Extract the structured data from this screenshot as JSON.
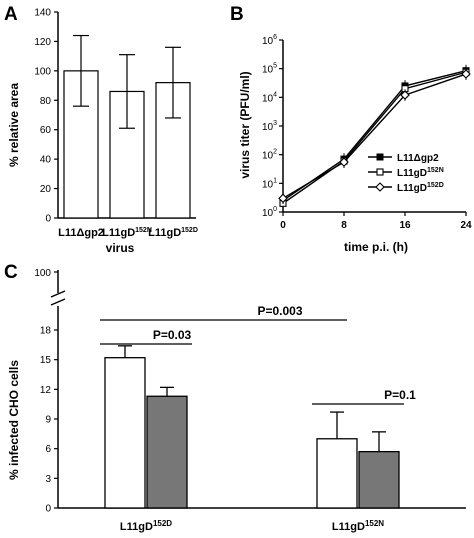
{
  "colors": {
    "axis": "#000000",
    "open_bar": "#ffffff",
    "filled_bar": "#777777",
    "line": "#000000"
  },
  "panels": {
    "A": {
      "letter": "A"
    },
    "B": {
      "letter": "B"
    },
    "C": {
      "letter": "C"
    }
  },
  "chart_data": [
    {
      "panel": "A",
      "type": "bar",
      "categories": [
        {
          "base": "L11Δgp2",
          "sup": ""
        },
        {
          "base": "L11gD",
          "sup": "152N"
        },
        {
          "base": "L11gD",
          "sup": "152D"
        }
      ],
      "values": [
        100,
        86,
        92
      ],
      "errors": [
        24,
        25,
        24
      ],
      "ylabel": "% relative area",
      "xlabel": "virus",
      "ylim": [
        0,
        140
      ],
      "yticks": [
        "0",
        "20",
        "40",
        "60",
        "80",
        "100",
        "120",
        "140"
      ],
      "grid": false
    },
    {
      "panel": "B",
      "type": "line",
      "x": [
        0,
        8,
        16,
        24
      ],
      "xticks": [
        "0",
        "8",
        "16",
        "24"
      ],
      "xlabel": "time p.i. (h)",
      "ylabel": "virus titer (PFU/ml)",
      "yscale": "log",
      "ylim": [
        1,
        1000000
      ],
      "yticks": [
        {
          "base": "10",
          "exp": "0"
        },
        {
          "base": "10",
          "exp": "1"
        },
        {
          "base": "10",
          "exp": "2"
        },
        {
          "base": "10",
          "exp": "3"
        },
        {
          "base": "10",
          "exp": "4"
        },
        {
          "base": "10",
          "exp": "5"
        },
        {
          "base": "10",
          "exp": "6"
        }
      ],
      "series": [
        {
          "name": {
            "base": "L11Δgp2",
            "sup": ""
          },
          "marker": "filled-square",
          "values": [
            2.5,
            70,
            25000,
            85000
          ]
        },
        {
          "name": {
            "base": "L11gD",
            "sup": "152N"
          },
          "marker": "open-square",
          "values": [
            2.0,
            60,
            20000,
            75000
          ]
        },
        {
          "name": {
            "base": "L11gD",
            "sup": "152D"
          },
          "marker": "open-diamond",
          "values": [
            3.0,
            55,
            12000,
            65000
          ]
        }
      ],
      "legend": "bottom-right",
      "grid": false
    },
    {
      "panel": "C",
      "type": "bar",
      "categories": [
        {
          "base": "L11gD",
          "sup": "152D"
        },
        {
          "base": "L11gD",
          "sup": "152N"
        }
      ],
      "series": [
        {
          "fill": "open",
          "values": [
            15.2,
            7.0
          ],
          "errors": [
            1.2,
            2.7
          ]
        },
        {
          "fill": "filled",
          "values": [
            11.3,
            5.7
          ],
          "errors": [
            0.9,
            2.0
          ]
        }
      ],
      "ylabel": "% infected CHO cells",
      "ylim": [
        0,
        18
      ],
      "axis_break": true,
      "yticks": [
        "0",
        "3",
        "6",
        "9",
        "12",
        "15",
        "18"
      ],
      "ytick_top": "100",
      "significance": [
        {
          "label": "P=0.03"
        },
        {
          "label": "P=0.003"
        },
        {
          "label": "P=0.1"
        }
      ],
      "grid": false
    }
  ]
}
